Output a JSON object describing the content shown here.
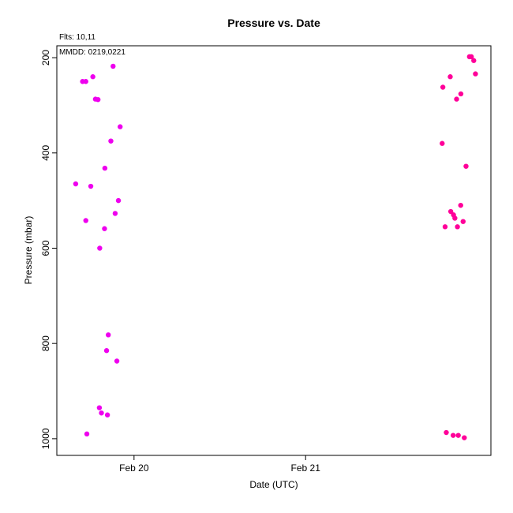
{
  "chart_data": {
    "type": "scatter",
    "title": "Pressure  vs. Date",
    "xlabel": "Date (UTC)",
    "ylabel": "Pressure (mbar)",
    "annotations": {
      "flights": "Flts: 10,11",
      "mmdd": "MMDD: 0219,0221"
    },
    "x_axis": {
      "unit": "days since Feb 19 00:00 UTC",
      "range": [
        0.55,
        3.08
      ],
      "ticks": [
        {
          "value": 1.0,
          "label": "Feb 20"
        },
        {
          "value": 2.0,
          "label": "Feb 21"
        }
      ]
    },
    "y_axis": {
      "inverted": true,
      "range": [
        1035,
        175
      ],
      "ticks": [
        {
          "value": 200,
          "label": "200"
        },
        {
          "value": 400,
          "label": "400"
        },
        {
          "value": 600,
          "label": "600"
        },
        {
          "value": 800,
          "label": "800"
        },
        {
          "value": 1000,
          "label": "1000"
        }
      ]
    },
    "grid": false,
    "series": [
      {
        "name": "Flight 10",
        "color": "#ee00ee",
        "points": [
          [
            0.7,
            250
          ],
          [
            0.719,
            250
          ],
          [
            0.76,
            240
          ],
          [
            0.775,
            287
          ],
          [
            0.79,
            288
          ],
          [
            0.878,
            218
          ],
          [
            0.919,
            345
          ],
          [
            0.865,
            375
          ],
          [
            0.83,
            432
          ],
          [
            0.66,
            465
          ],
          [
            0.748,
            470
          ],
          [
            0.909,
            500
          ],
          [
            0.89,
            527
          ],
          [
            0.719,
            542
          ],
          [
            0.828,
            559
          ],
          [
            0.8,
            600
          ],
          [
            0.85,
            782
          ],
          [
            0.84,
            815
          ],
          [
            0.9,
            837
          ],
          [
            0.798,
            935
          ],
          [
            0.81,
            946
          ],
          [
            0.845,
            950
          ],
          [
            0.725,
            990
          ]
        ]
      },
      {
        "name": "Flight 11",
        "color": "#ff0099",
        "points": [
          [
            2.796,
            380
          ],
          [
            2.8,
            262
          ],
          [
            2.843,
            240
          ],
          [
            2.88,
            287
          ],
          [
            2.905,
            276
          ],
          [
            2.955,
            198
          ],
          [
            2.966,
            198
          ],
          [
            2.98,
            206
          ],
          [
            2.99,
            234
          ],
          [
            2.935,
            428
          ],
          [
            2.904,
            510
          ],
          [
            2.846,
            523
          ],
          [
            2.87,
            537
          ],
          [
            2.862,
            530
          ],
          [
            2.918,
            544
          ],
          [
            2.813,
            555
          ],
          [
            2.885,
            555
          ],
          [
            2.82,
            987
          ],
          [
            2.86,
            993
          ],
          [
            2.89,
            993
          ],
          [
            2.925,
            998
          ]
        ]
      }
    ]
  }
}
